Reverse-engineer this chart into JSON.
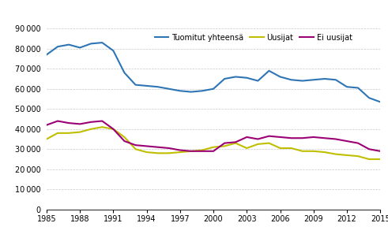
{
  "years": [
    1985,
    1986,
    1987,
    1988,
    1989,
    1990,
    1991,
    1992,
    1993,
    1994,
    1995,
    1996,
    1997,
    1998,
    1999,
    2000,
    2001,
    2002,
    2003,
    2004,
    2005,
    2006,
    2007,
    2008,
    2009,
    2010,
    2011,
    2012,
    2013,
    2014,
    2015
  ],
  "tuomitut": [
    77000,
    81000,
    82000,
    80500,
    82500,
    83000,
    79000,
    68000,
    62000,
    61500,
    61000,
    60000,
    59000,
    58500,
    59000,
    60000,
    65000,
    66000,
    65500,
    64000,
    69000,
    66000,
    64500,
    64000,
    64500,
    65000,
    64500,
    61000,
    60500,
    55500,
    53500
  ],
  "uusijat": [
    35000,
    38000,
    38000,
    38500,
    40000,
    41000,
    40000,
    36000,
    30000,
    28500,
    28000,
    28000,
    28500,
    29000,
    29500,
    31000,
    31500,
    33000,
    30500,
    32500,
    33000,
    30500,
    30500,
    29000,
    29000,
    28500,
    27500,
    27000,
    26500,
    25000,
    25000
  ],
  "ei_uusijat": [
    42000,
    44000,
    43000,
    42500,
    43500,
    44000,
    40000,
    34000,
    32000,
    31500,
    31000,
    30500,
    29500,
    29000,
    29000,
    29000,
    33000,
    33500,
    36000,
    35000,
    36500,
    36000,
    35500,
    35500,
    36000,
    35500,
    35000,
    34000,
    33000,
    30000,
    29000
  ],
  "line_colors": {
    "tuomitut": "#2E75B6",
    "uusijat": "#BFBF00",
    "ei_uusijat": "#9B0075"
  },
  "legend_labels": [
    "Tuomitut yhteensä",
    "Uusijat",
    "Ei uusijat"
  ],
  "ylim": [
    0,
    90000
  ],
  "yticks": [
    0,
    10000,
    20000,
    30000,
    40000,
    50000,
    60000,
    70000,
    80000,
    90000
  ],
  "xticks": [
    1985,
    1988,
    1991,
    1994,
    1997,
    2000,
    2003,
    2006,
    2009,
    2012,
    2015
  ],
  "background_color": "#ffffff",
  "grid_color": "#c8c8c8"
}
